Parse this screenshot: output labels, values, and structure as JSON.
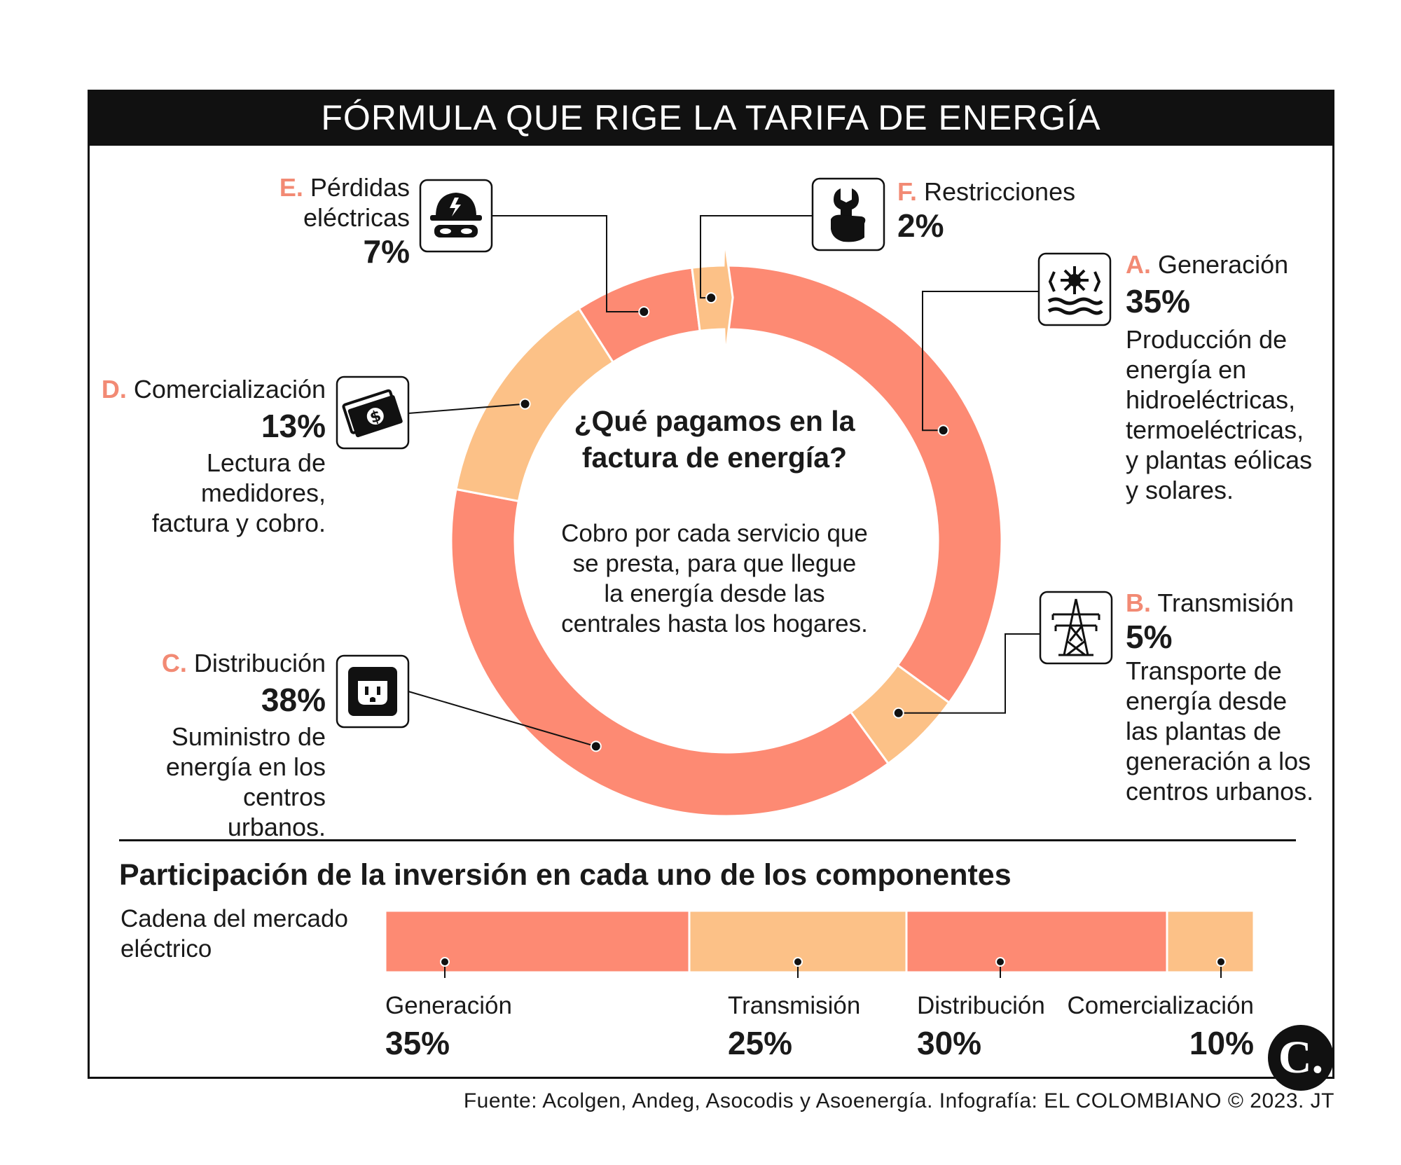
{
  "title": "FÓRMULA QUE RIGE LA TARIFA DE ENERGÍA",
  "center": {
    "question": "¿Qué pagamos en la factura de energía?",
    "description": "Cobro por cada servicio que se presta, para que llegue la energía desde las centrales hasta los hogares."
  },
  "components": {
    "a": {
      "letter": "A.",
      "name": "Generación",
      "percent": "35%",
      "description": "Producción de energía en hidroeléctricas, termoeléctricas, y plantas eólicas y solares.",
      "icon": "hydro-plant-icon"
    },
    "b": {
      "letter": "B.",
      "name": "Transmisión",
      "percent": "5%",
      "description": "Transporte de energía desde las plantas de generación a los centros urbanos.",
      "icon": "power-tower-icon"
    },
    "c": {
      "letter": "C.",
      "name": "Distribución",
      "percent": "38%",
      "description": "Suministro de energía en los centros urbanos.",
      "icon": "outlet-icon"
    },
    "d": {
      "letter": "D.",
      "name": "Comercialización",
      "percent": "13%",
      "description": "Lectura de medidores, factura y cobro.",
      "icon": "money-icon"
    },
    "e": {
      "letter": "E.",
      "name_line1": "Pérdidas",
      "name_line2": "eléctricas",
      "percent": "7%",
      "icon": "thief-icon"
    },
    "f": {
      "letter": "F.",
      "name": "Restricciones",
      "percent": "2%",
      "icon": "wrench-hand-icon"
    }
  },
  "investment": {
    "title": "Participación de la inversión en cada uno de los componentes",
    "row_label": "Cadena del mercado eléctrico",
    "items": [
      {
        "name": "Generación",
        "percent": "35%"
      },
      {
        "name": "Transmisión",
        "percent": "25%"
      },
      {
        "name": "Distribución",
        "percent": "30%"
      },
      {
        "name": "Comercialización",
        "percent": "10%"
      }
    ]
  },
  "source": "Fuente: Acolgen, Andeg, Asocodis y Asoenergía. Infografía: EL COLOMBIANO © 2023. JT",
  "logo_text": "C.",
  "colors": {
    "salmon": "#fd8a73",
    "peach": "#fcc187",
    "black": "#111111",
    "accent_letter": "#f28a74"
  },
  "chart_data": [
    {
      "type": "pie",
      "title": "¿Qué pagamos en la factura de energía?",
      "categories": [
        "Generación",
        "Transmisión",
        "Distribución",
        "Comercialización",
        "Pérdidas eléctricas",
        "Restricciones"
      ],
      "values": [
        35,
        5,
        38,
        13,
        7,
        2
      ],
      "colors": [
        "#fd8a73",
        "#fcc187",
        "#fd8a73",
        "#fcc187",
        "#fd8a73",
        "#fcc187"
      ]
    },
    {
      "type": "bar",
      "title": "Participación de la inversión en cada uno de los componentes",
      "categories": [
        "Generación",
        "Transmisión",
        "Distribución",
        "Comercialización"
      ],
      "values": [
        35,
        25,
        30,
        10
      ],
      "colors": [
        "#fd8a73",
        "#fcc187",
        "#fd8a73",
        "#fcc187"
      ]
    }
  ]
}
